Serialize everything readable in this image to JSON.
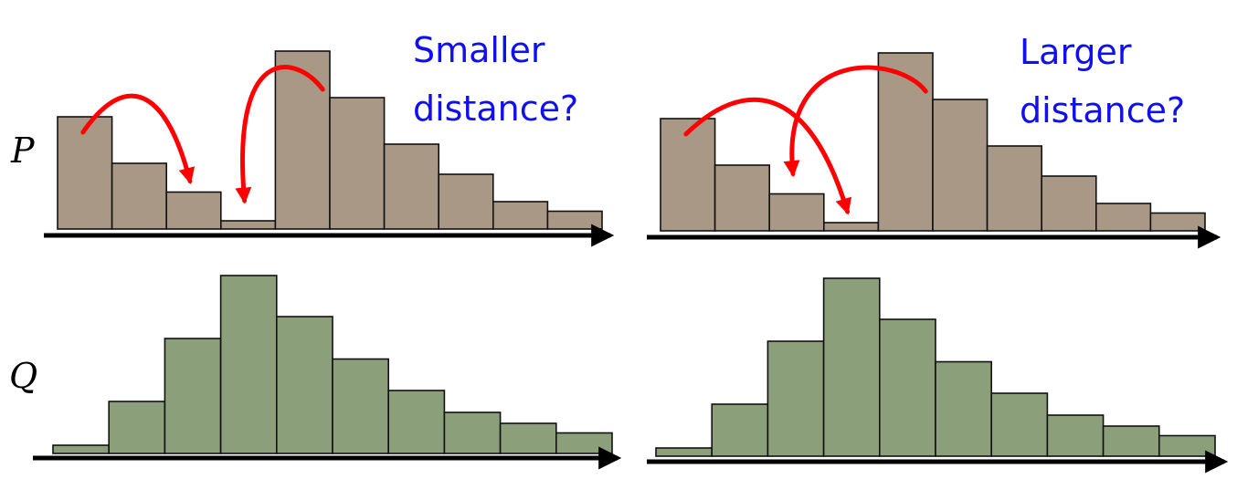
{
  "labels": {
    "p": "P",
    "q": "Q"
  },
  "left_caption": {
    "line1": "Smaller",
    "line2": "distance?"
  },
  "right_caption": {
    "line1": "Larger",
    "line2": "distance?"
  },
  "colors": {
    "p_bar": "#a99886",
    "q_bar": "#8c9f7b",
    "arrow": "#ff0000",
    "caption": "#1010ee",
    "axis": "#000000"
  },
  "chart_data": [
    {
      "type": "bar",
      "name": "P-left",
      "values": [
        4.1,
        2.4,
        1.35,
        0.3,
        6.5,
        4.8,
        3.1,
        2.0,
        1.0,
        0.65
      ],
      "moves": [
        {
          "from": 0,
          "to": 2
        },
        {
          "from": 4,
          "to": 3
        }
      ]
    },
    {
      "type": "bar",
      "name": "P-right",
      "values": [
        4.1,
        2.4,
        1.35,
        0.3,
        6.5,
        4.8,
        3.1,
        2.0,
        1.0,
        0.65
      ],
      "moves": [
        {
          "from": 0,
          "to": 3
        },
        {
          "from": 4,
          "to": 2
        }
      ]
    },
    {
      "type": "bar",
      "name": "Q-left",
      "values": [
        0.3,
        1.9,
        4.2,
        6.5,
        5.0,
        3.45,
        2.3,
        1.5,
        1.1,
        0.75
      ]
    },
    {
      "type": "bar",
      "name": "Q-right",
      "values": [
        0.3,
        1.9,
        4.2,
        6.5,
        5.0,
        3.45,
        2.3,
        1.5,
        1.1,
        0.75
      ]
    }
  ]
}
